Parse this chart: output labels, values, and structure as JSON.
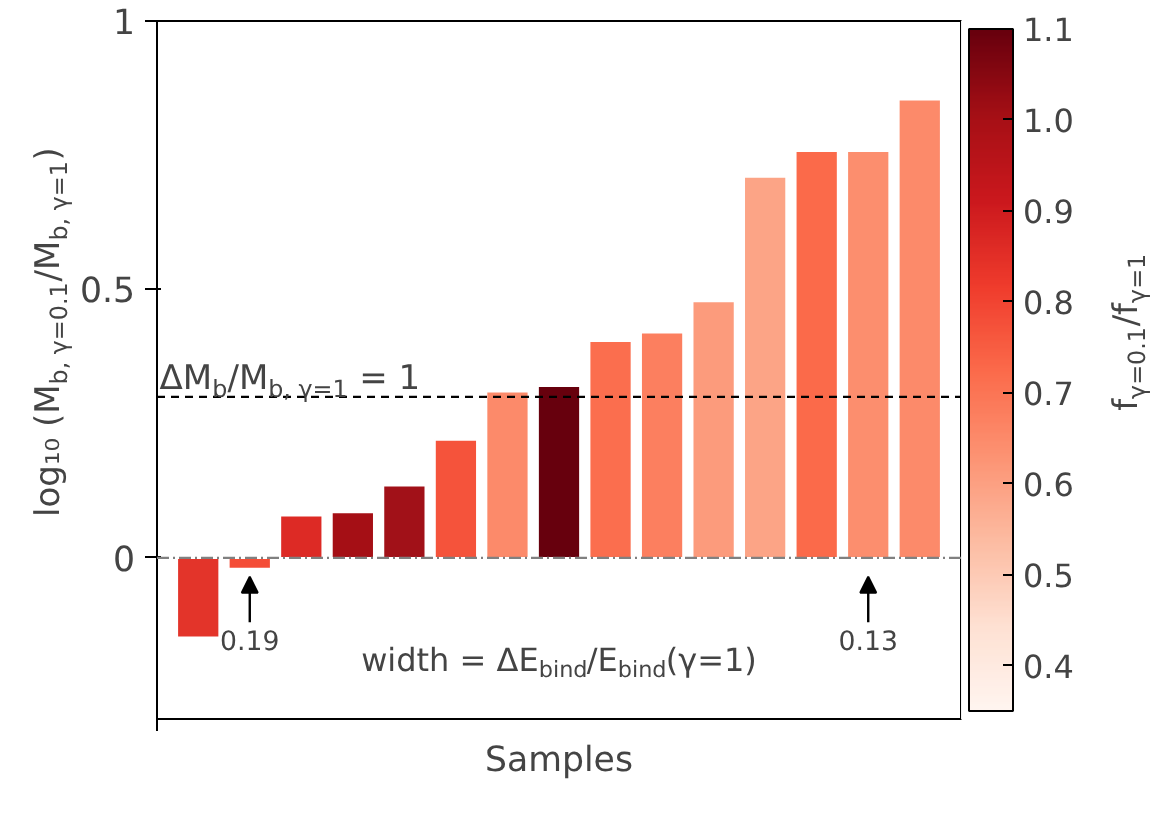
{
  "chart_data": {
    "type": "bar",
    "xlabel": "Samples",
    "ylabel": "log₁₀ (M$_{b, γ=0.1}$/M$_{b, γ=1}$)",
    "clabel": "f$_{γ=0.1}$/f$_{γ=1}$",
    "categories": [
      null,
      null,
      null,
      null,
      null,
      null,
      null,
      null,
      null,
      null,
      null,
      null,
      null,
      null,
      null
    ],
    "values": [
      -0.148,
      -0.02,
      0.079,
      0.085,
      0.135,
      0.22,
      0.31,
      0.32,
      0.404,
      0.42,
      0.478,
      0.71,
      0.758,
      0.758,
      0.854
    ],
    "colors": [
      "#e3342a",
      "#f44d37",
      "#dd2a25",
      "#a50f15",
      "#a11118",
      "#f5533b",
      "#fc8a6a",
      "#67000d",
      "#fb6e4e",
      "#fc7f5f",
      "#fc9b7c",
      "#fca486",
      "#fb6a4a",
      "#fc8e6e",
      "#fc8a6a"
    ],
    "ylim": [
      -0.3,
      1.0
    ],
    "yticks": [
      0,
      0.5,
      1
    ],
    "clim": [
      0.35,
      1.1
    ],
    "cticks": [
      0.4,
      0.5,
      0.6,
      0.7,
      0.8,
      0.9,
      {
        "value": 1.0,
        "label": "1.0"
      },
      1.1
    ],
    "ref_lines": [
      {
        "axis": "y",
        "value": 0.3,
        "label": null,
        "color": "#000000",
        "line_style": "dashed"
      },
      {
        "axis": "y",
        "value": 0,
        "label": null,
        "color": "#808080",
        "line_style": "dashdot"
      }
    ],
    "annotations": [
      "0.19",
      "0.13",
      "width = ΔE$_{bind}$/E$_{bind}$(γ=1)",
      "ΔM$_{b}$/M$_{b, γ=1}$ = 1"
    ],
    "grid": false,
    "tick_labels": "y"
  }
}
